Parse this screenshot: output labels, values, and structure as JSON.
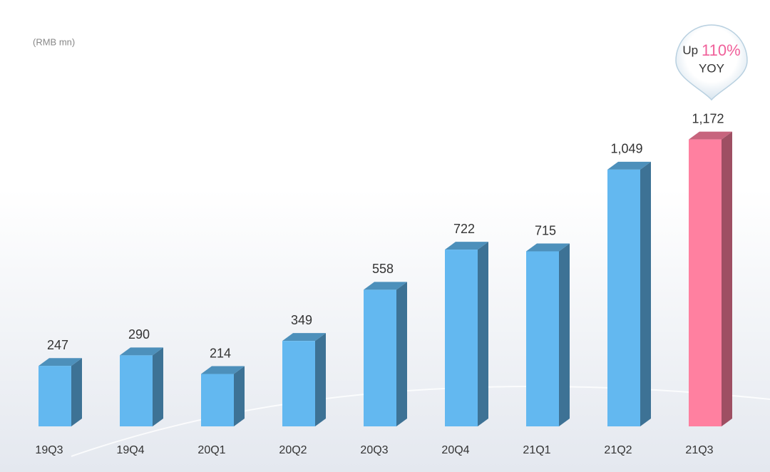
{
  "chart_data": {
    "type": "bar3d",
    "unit_label": "(RMB mn)",
    "categories": [
      "19Q3",
      "19Q4",
      "20Q1",
      "20Q2",
      "20Q3",
      "20Q4",
      "21Q1",
      "21Q2",
      "21Q3"
    ],
    "values": [
      247,
      290,
      214,
      349,
      558,
      722,
      715,
      1049,
      1172
    ],
    "value_labels": [
      "247",
      "290",
      "214",
      "349",
      "558",
      "722",
      "715",
      "1,049",
      "1,172"
    ],
    "color": "#63b8f0",
    "highlight": "21Q3",
    "highlight_color": "#ff80a0",
    "ylim": [
      0,
      1200
    ],
    "annotation": {
      "prefix": "Up",
      "highlight": "110%",
      "suffix": "YOY"
    }
  }
}
